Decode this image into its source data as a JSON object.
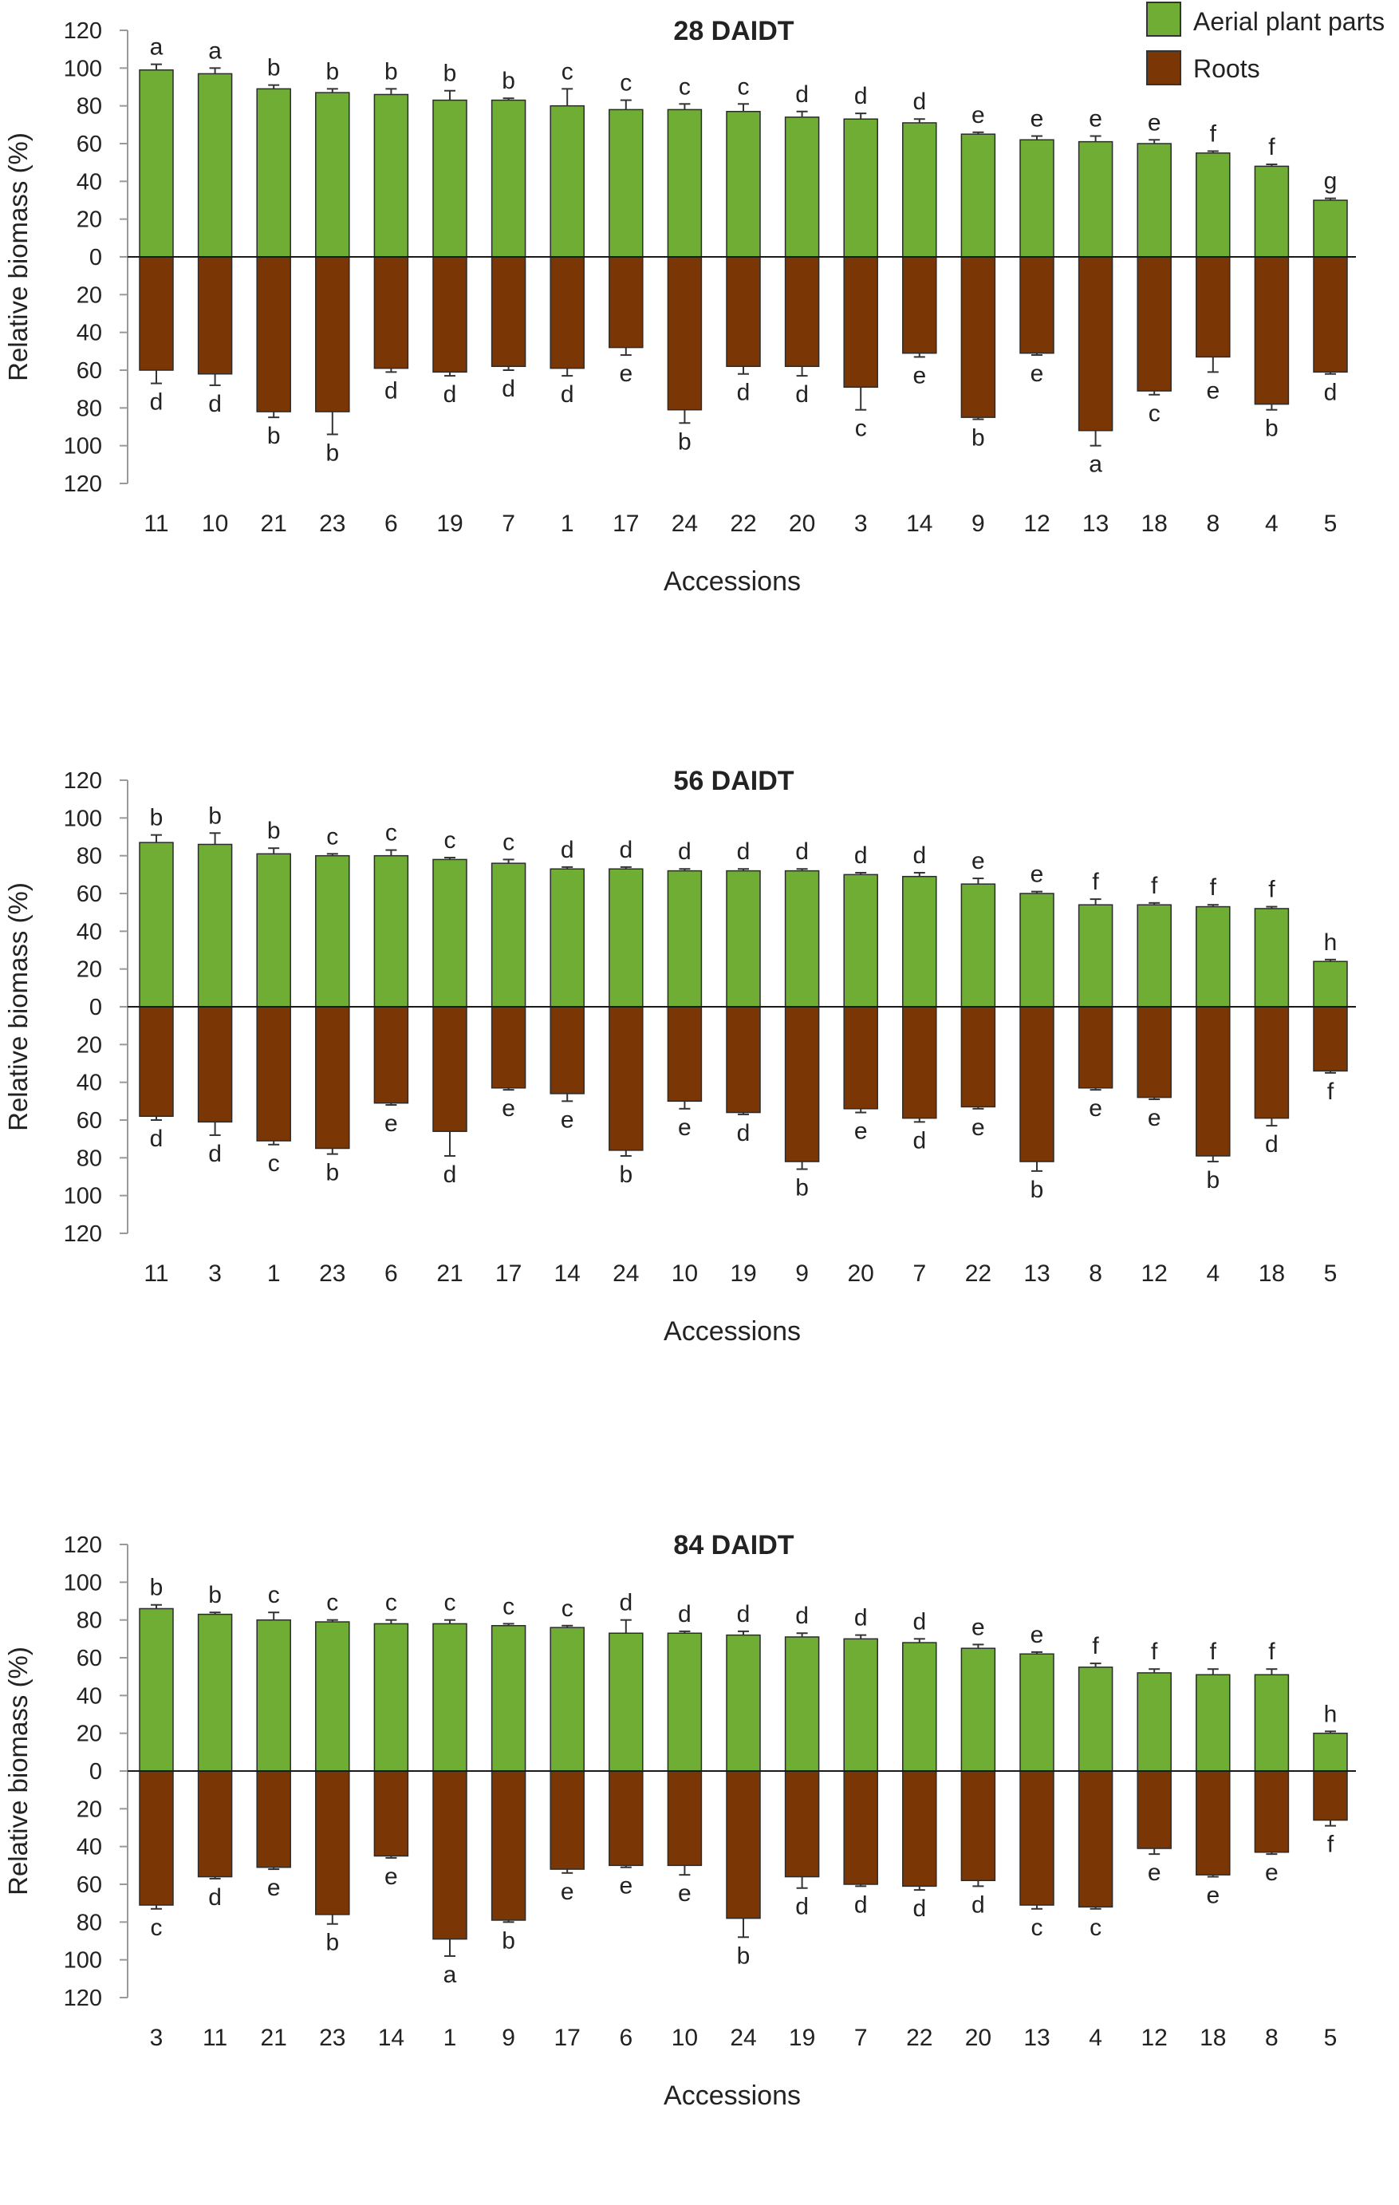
{
  "legend": {
    "items": [
      {
        "label": "Aerial plant parts",
        "color": "#70ad35"
      },
      {
        "label": "Roots",
        "color": "#7b3606"
      }
    ]
  },
  "chart_data": [
    {
      "type": "bar",
      "title": "28 DAIDT",
      "xlabel": "Accessions",
      "ylabel": "Relative biomass (%)",
      "ylim": [
        -120,
        120
      ],
      "y_ticks": [
        120,
        100,
        80,
        60,
        40,
        20,
        0,
        20,
        40,
        60,
        80,
        100,
        120
      ],
      "categories": [
        "11",
        "10",
        "21",
        "23",
        "6",
        "19",
        "7",
        "1",
        "17",
        "24",
        "22",
        "20",
        "3",
        "14",
        "9",
        "12",
        "13",
        "18",
        "8",
        "4",
        "5"
      ],
      "series": [
        {
          "name": "Aerial plant parts",
          "values": [
            99,
            97,
            89,
            87,
            86,
            83,
            83,
            80,
            78,
            78,
            77,
            74,
            73,
            71,
            65,
            62,
            61,
            60,
            55,
            48,
            30
          ],
          "errors": [
            3,
            3,
            2,
            2,
            3,
            5,
            1,
            9,
            5,
            3,
            4,
            3,
            3,
            2,
            1,
            2,
            3,
            2,
            1,
            1,
            1
          ],
          "letters": [
            "a",
            "a",
            "b",
            "b",
            "b",
            "b",
            "b",
            "c",
            "c",
            "c",
            "c",
            "d",
            "d",
            "d",
            "e",
            "e",
            "e",
            "e",
            "f",
            "f",
            "g"
          ]
        },
        {
          "name": "Roots",
          "values": [
            60,
            62,
            82,
            82,
            59,
            61,
            58,
            59,
            48,
            81,
            58,
            58,
            69,
            51,
            85,
            51,
            92,
            71,
            53,
            78,
            61
          ],
          "errors": [
            7,
            6,
            3,
            12,
            2,
            2,
            2,
            4,
            4,
            7,
            4,
            5,
            12,
            2,
            1,
            1,
            8,
            2,
            8,
            3,
            1
          ],
          "letters": [
            "d",
            "d",
            "b",
            "b",
            "d",
            "d",
            "d",
            "d",
            "e",
            "b",
            "d",
            "d",
            "c",
            "e",
            "b",
            "e",
            "a",
            "c",
            "e",
            "b",
            "d"
          ]
        }
      ]
    },
    {
      "type": "bar",
      "title": "56 DAIDT",
      "xlabel": "Accessions",
      "ylabel": "Relative biomass (%)",
      "ylim": [
        -120,
        120
      ],
      "y_ticks": [
        120,
        100,
        80,
        60,
        40,
        20,
        0,
        20,
        40,
        60,
        80,
        100,
        120
      ],
      "categories": [
        "11",
        "3",
        "1",
        "23",
        "6",
        "21",
        "17",
        "14",
        "24",
        "10",
        "19",
        "9",
        "20",
        "7",
        "22",
        "13",
        "8",
        "12",
        "4",
        "18",
        "5"
      ],
      "series": [
        {
          "name": "Aerial plant parts",
          "values": [
            87,
            86,
            81,
            80,
            80,
            78,
            76,
            73,
            73,
            72,
            72,
            72,
            70,
            69,
            65,
            60,
            54,
            54,
            53,
            52,
            24
          ],
          "errors": [
            4,
            6,
            3,
            1,
            3,
            1,
            2,
            1,
            1,
            1,
            1,
            1,
            1,
            2,
            3,
            1,
            3,
            1,
            1,
            1,
            1
          ],
          "letters": [
            "b",
            "b",
            "b",
            "c",
            "c",
            "c",
            "c",
            "d",
            "d",
            "d",
            "d",
            "d",
            "d",
            "d",
            "e",
            "e",
            "f",
            "f",
            "f",
            "f",
            "h"
          ]
        },
        {
          "name": "Roots",
          "values": [
            58,
            61,
            71,
            75,
            51,
            66,
            43,
            46,
            76,
            50,
            56,
            82,
            54,
            59,
            53,
            82,
            43,
            48,
            79,
            59,
            34
          ],
          "errors": [
            2,
            7,
            2,
            3,
            1,
            13,
            1,
            4,
            3,
            4,
            1,
            4,
            2,
            2,
            1,
            5,
            1,
            1,
            3,
            4,
            1
          ],
          "letters": [
            "d",
            "d",
            "c",
            "b",
            "e",
            "d",
            "e",
            "e",
            "b",
            "e",
            "d",
            "b",
            "e",
            "d",
            "e",
            "b",
            "e",
            "e",
            "b",
            "d",
            "f"
          ]
        }
      ]
    },
    {
      "type": "bar",
      "title": "84 DAIDT",
      "xlabel": "Accessions",
      "ylabel": "Relative biomass (%)",
      "ylim": [
        -120,
        120
      ],
      "y_ticks": [
        120,
        100,
        80,
        60,
        40,
        20,
        0,
        20,
        40,
        60,
        80,
        100,
        120
      ],
      "categories": [
        "3",
        "11",
        "21",
        "23",
        "14",
        "1",
        "9",
        "17",
        "6",
        "10",
        "24",
        "19",
        "7",
        "22",
        "20",
        "13",
        "4",
        "12",
        "18",
        "8",
        "5"
      ],
      "series": [
        {
          "name": "Aerial plant parts",
          "values": [
            86,
            83,
            80,
            79,
            78,
            78,
            77,
            76,
            73,
            73,
            72,
            71,
            70,
            68,
            65,
            62,
            55,
            52,
            51,
            51,
            20
          ],
          "errors": [
            2,
            1,
            4,
            1,
            2,
            2,
            1,
            1,
            7,
            1,
            2,
            2,
            2,
            2,
            2,
            1,
            2,
            2,
            3,
            3,
            1
          ],
          "letters": [
            "b",
            "b",
            "c",
            "c",
            "c",
            "c",
            "c",
            "c",
            "d",
            "d",
            "d",
            "d",
            "d",
            "d",
            "e",
            "e",
            "f",
            "f",
            "f",
            "f",
            "h"
          ]
        },
        {
          "name": "Roots",
          "values": [
            71,
            56,
            51,
            76,
            45,
            89,
            79,
            52,
            50,
            50,
            78,
            56,
            60,
            61,
            58,
            71,
            72,
            41,
            55,
            43,
            26
          ],
          "errors": [
            2,
            1,
            1,
            5,
            1,
            9,
            1,
            2,
            1,
            5,
            10,
            6,
            1,
            2,
            3,
            2,
            1,
            3,
            1,
            1,
            3
          ],
          "letters": [
            "c",
            "d",
            "e",
            "b",
            "e",
            "a",
            "b",
            "e",
            "e",
            "e",
            "b",
            "d",
            "d",
            "d",
            "d",
            "c",
            "c",
            "e",
            "e",
            "e",
            "f"
          ]
        }
      ]
    }
  ]
}
